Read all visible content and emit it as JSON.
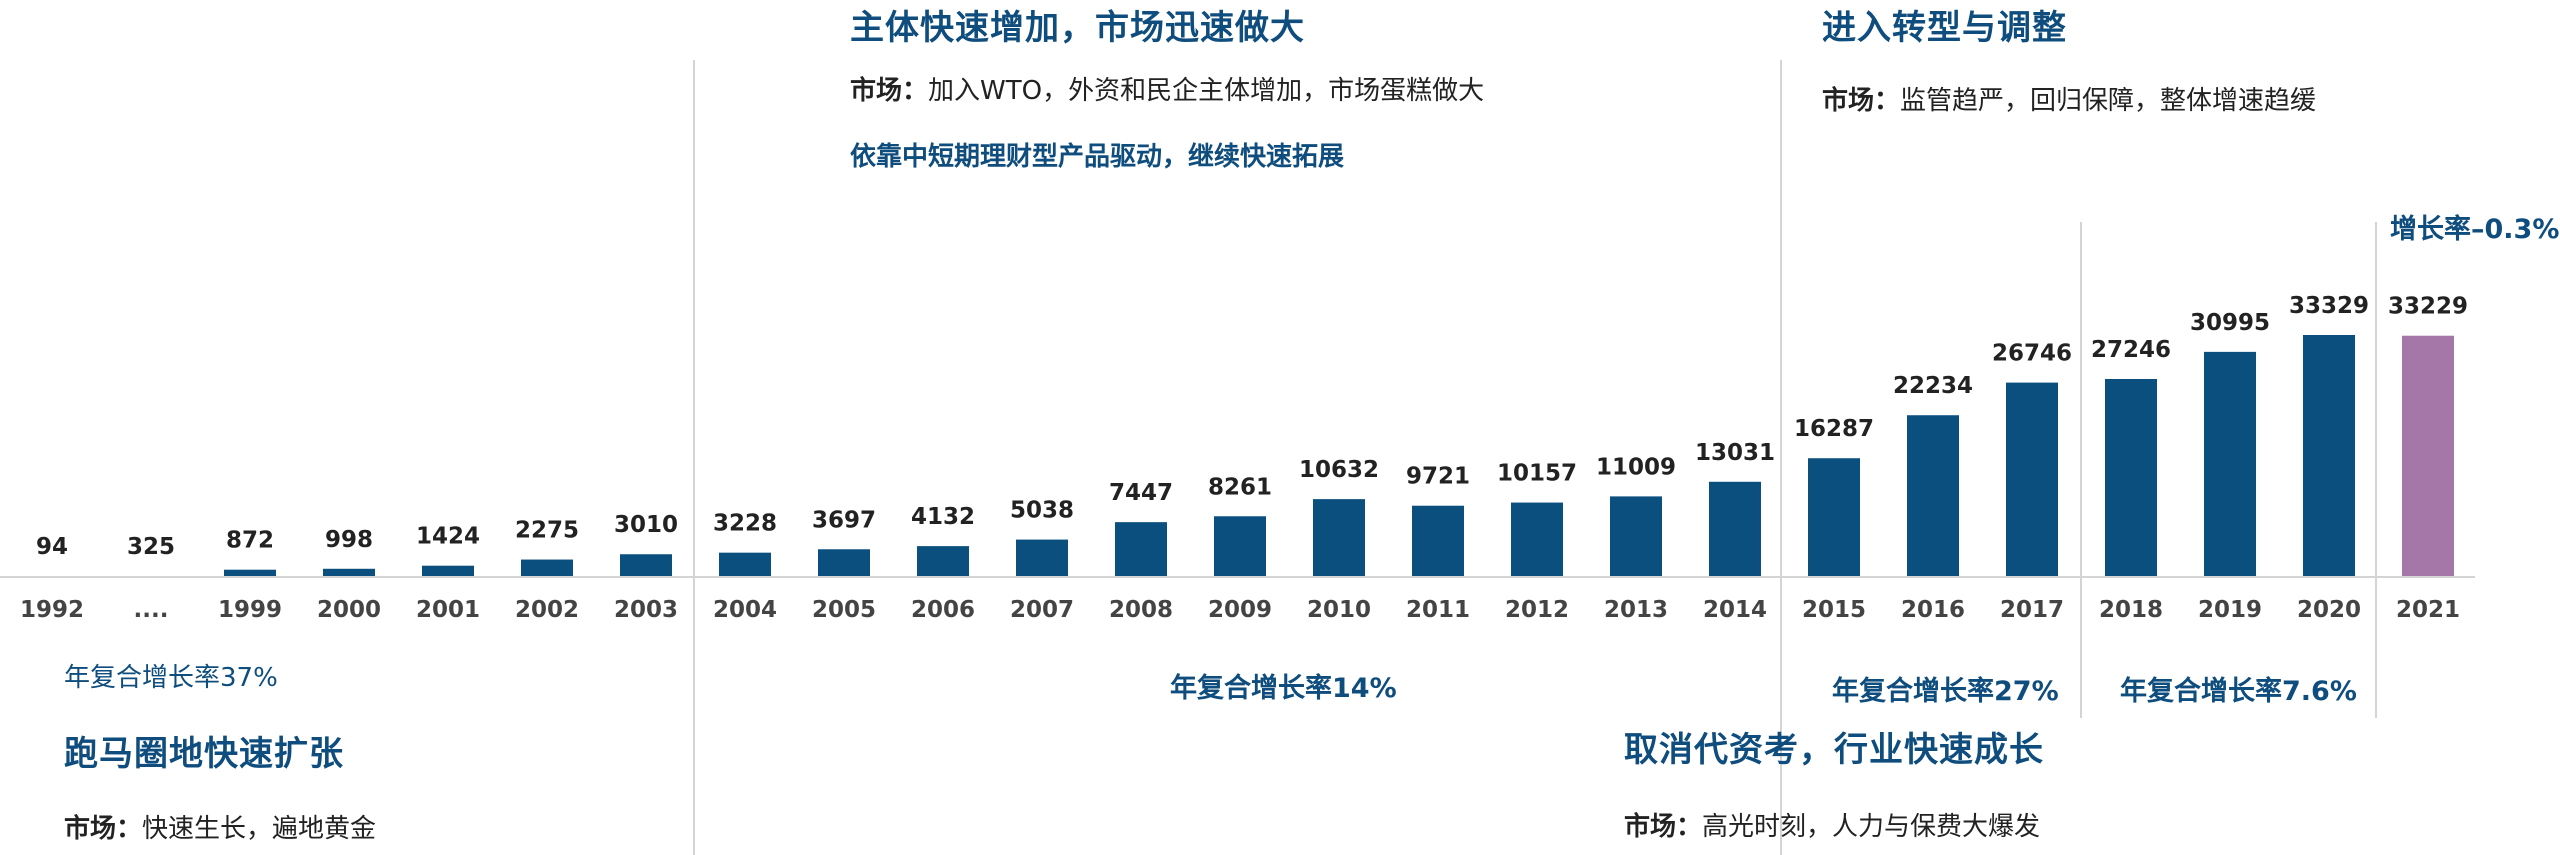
{
  "colors": {
    "bar": "#0b4f7f",
    "bar_highlight": "#a477a8",
    "text_dark": "#222222",
    "year_label": "#444444",
    "accent": "#0e4d7d",
    "divider": "#d4d4d4"
  },
  "chart_data": {
    "type": "bar",
    "categories": [
      "1992",
      "....",
      "1999",
      "2000",
      "2001",
      "2002",
      "2003",
      "2004",
      "2005",
      "2006",
      "2007",
      "2008",
      "2009",
      "2010",
      "2011",
      "2012",
      "2013",
      "2014",
      "2015",
      "2016",
      "2017",
      "2018",
      "2019",
      "2020",
      "2021"
    ],
    "values": [
      94,
      325,
      872,
      998,
      1424,
      2275,
      3010,
      3228,
      3697,
      4132,
      5038,
      7447,
      8261,
      10632,
      9721,
      10157,
      11009,
      13031,
      16287,
      22234,
      26746,
      27246,
      30995,
      33329,
      33229
    ],
    "value_labels": [
      "94",
      "325",
      "872",
      "998",
      "1424",
      "2275",
      "3010",
      "3228",
      "3697",
      "4132",
      "5038",
      "7447",
      "8261",
      "10632",
      "9721",
      "10157",
      "11009",
      "13031",
      "16287",
      "22234",
      "26746",
      "27246",
      "30995",
      "33329",
      "33229"
    ],
    "highlight_index": 24,
    "visible_bar_from_index": 2,
    "ylim": [
      0,
      33329
    ],
    "legend": "none",
    "grid": false
  },
  "phases": {
    "p1": {
      "cagr": "年复合增长率37%",
      "title": "跑马圈地快速扩张",
      "market_label": "市场：",
      "market_text": "快速生长，遍地黄金"
    },
    "p2": {
      "title": "主体快速增加，市场迅速做大",
      "market_label": "市场：",
      "market_text": "加入WTO，外资和民企主体增加，市场蛋糕做大",
      "note": "依靠中短期理财型产品驱动，继续快速拓展",
      "cagr": "年复合增长率14%"
    },
    "p3": {
      "cagr": "年复合增长率27%",
      "title": "取消代资考，行业快速成长",
      "market_label": "市场：",
      "market_text": "高光时刻，人力与保费大爆发"
    },
    "p4": {
      "title": "进入转型与调整",
      "market_label": "市场：",
      "market_text": "监管趋严，回归保障，整体增速趋缓",
      "cagr": "年复合增长率7.6%",
      "growth": "增长率–0.3%"
    }
  }
}
